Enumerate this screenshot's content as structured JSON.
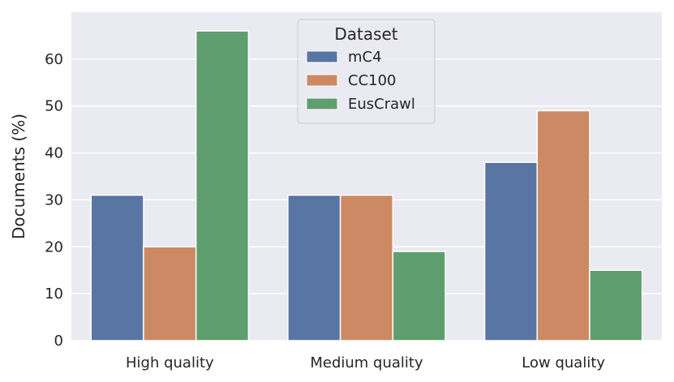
{
  "chart_data": {
    "type": "bar",
    "categories": [
      "High quality",
      "Medium quality",
      "Low quality"
    ],
    "series": [
      {
        "name": "mC4",
        "values": [
          31,
          31,
          38
        ],
        "color": "#5975a4"
      },
      {
        "name": "CC100",
        "values": [
          20,
          31,
          49
        ],
        "color": "#cc8963"
      },
      {
        "name": "EusCrawl",
        "values": [
          66,
          19,
          15
        ],
        "color": "#5f9e6e"
      }
    ],
    "xlabel": "",
    "ylabel": "Documents (%)",
    "ylim": [
      0,
      70
    ],
    "yticks": [
      0,
      10,
      20,
      30,
      40,
      50,
      60
    ],
    "grid": true,
    "legend": {
      "title": "Dataset",
      "placement": "top-center"
    },
    "background_color": "#eaeaf2"
  }
}
